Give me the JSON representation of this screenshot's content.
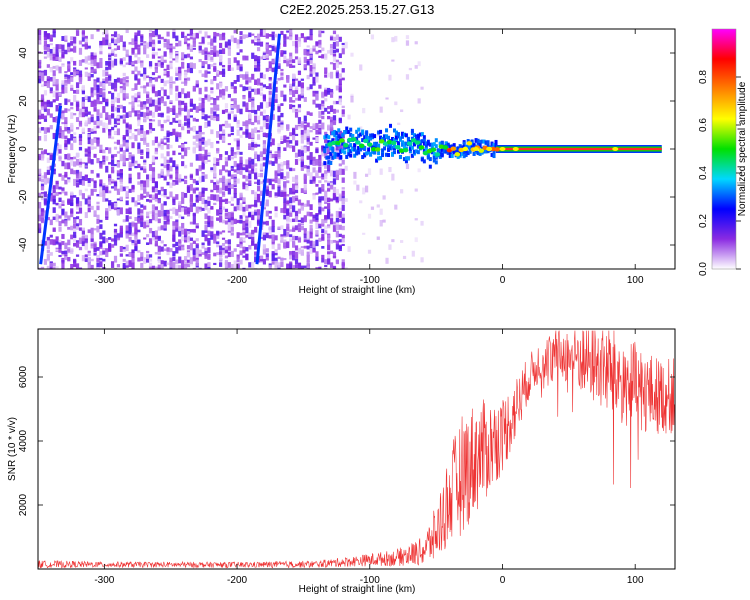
{
  "title": "C2E2.2025.253.15.27.G13",
  "chart_data": [
    {
      "type": "heatmap",
      "xlabel": "Height of straight line (km)",
      "ylabel": "Frequency (Hz)",
      "xlim": [
        -350,
        130
      ],
      "ylim": [
        -50,
        50
      ],
      "xticks": [
        -300,
        -200,
        -100,
        0,
        100
      ],
      "yticks": [
        -40,
        -20,
        0,
        20,
        40
      ],
      "colorbar": {
        "label": "Normalized spectral amplitude",
        "range": [
          0.0,
          1.0
        ],
        "ticks": [
          0.0,
          0.2,
          0.4,
          0.6,
          0.8
        ],
        "colors": [
          "#ffffff",
          "#8a2be2",
          "#0000ff",
          "#00d8ff",
          "#00e000",
          "#ffff00",
          "#ff8000",
          "#ff0000",
          "#ff00ff"
        ]
      },
      "features": {
        "noise_region_x": [
          -350,
          -120
        ],
        "sparse_noise_x": [
          -120,
          -60
        ],
        "slant_lines": [
          {
            "x": [
              -348,
              -333
            ],
            "freq": [
              -48,
              18
            ]
          },
          {
            "x": [
              -185,
              -168
            ],
            "freq": [
              -48,
              48
            ]
          }
        ],
        "signal_track": [
          [
            -130,
            2
          ],
          [
            -110,
            3
          ],
          [
            -95,
            1
          ],
          [
            -85,
            4
          ],
          [
            -75,
            0
          ],
          [
            -65,
            3
          ],
          [
            -55,
            -2
          ],
          [
            -45,
            0
          ],
          [
            -35,
            -1
          ],
          [
            -25,
            1
          ],
          [
            -10,
            0
          ],
          [
            0,
            0
          ],
          [
            40,
            0
          ],
          [
            85,
            0
          ],
          [
            130,
            0
          ]
        ]
      }
    },
    {
      "type": "line",
      "xlabel": "Height of straight line (km)",
      "ylabel": "SNR (10 * v/v)",
      "xlim": [
        -350,
        130
      ],
      "ylim": [
        0,
        7500
      ],
      "xticks": [
        -300,
        -200,
        -100,
        0,
        100
      ],
      "yticks": [
        2000,
        4000,
        6000
      ],
      "color": "#ee3333",
      "envelope": {
        "x": [
          -350,
          -300,
          -200,
          -140,
          -110,
          -80,
          -60,
          -50,
          -40,
          -30,
          -20,
          -10,
          0,
          10,
          20,
          30,
          40,
          50,
          60,
          70,
          80,
          90,
          100,
          110,
          120,
          130
        ],
        "mid": [
          150,
          140,
          130,
          150,
          250,
          350,
          550,
          1100,
          2200,
          3000,
          3500,
          3800,
          4200,
          5000,
          6000,
          6600,
          6700,
          6700,
          6600,
          6400,
          6200,
          5900,
          5700,
          5500,
          5400,
          5400
        ],
        "amp": [
          120,
          90,
          90,
          110,
          170,
          260,
          450,
          900,
          1500,
          1900,
          1800,
          1500,
          1200,
          1000,
          700,
          650,
          800,
          900,
          1200,
          1300,
          1500,
          1500,
          1400,
          1300,
          1200,
          1200
        ]
      }
    }
  ]
}
